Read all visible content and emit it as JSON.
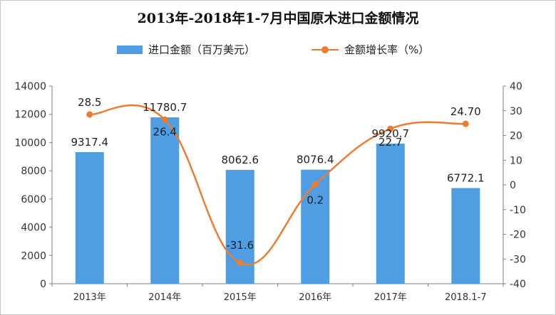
{
  "title": "2013年-2018年1-7月中国原木进口金额情况",
  "legend": {
    "bar_label": "进口金额（百万美元）",
    "line_label": "金额增长率（%）"
  },
  "colors": {
    "bar": "#4f9de3",
    "line": "#ed7d31"
  },
  "chart_data": {
    "type": "bar",
    "categories": [
      "2013年",
      "2014年",
      "2015年",
      "2016年",
      "2017年",
      "2018.1-7"
    ],
    "series": [
      {
        "name": "进口金额（百万美元）",
        "type": "bar",
        "axis": "left",
        "values": [
          9317.4,
          11780.7,
          8062.6,
          8076.4,
          9920.7,
          6772.1
        ],
        "labels": [
          "9317.4",
          "11780.7",
          "8062.6",
          "8076.4",
          "9920.7",
          "6772.1"
        ]
      },
      {
        "name": "金额增长率（%）",
        "type": "line",
        "axis": "right",
        "values": [
          28.5,
          26.4,
          -31.6,
          0.2,
          22.7,
          24.7
        ],
        "labels": [
          "28.5",
          "26.4",
          "-31.6",
          "0.2",
          "22.7",
          "24.70"
        ]
      }
    ],
    "left_axis": {
      "ylim": [
        0,
        14000
      ],
      "ticks": [
        0,
        2000,
        4000,
        6000,
        8000,
        10000,
        12000,
        14000
      ]
    },
    "right_axis": {
      "ylim": [
        -40,
        40
      ],
      "ticks": [
        -40,
        -30,
        -20,
        -10,
        0,
        10,
        20,
        30,
        40
      ]
    },
    "grid": false,
    "legend_position": "top"
  }
}
